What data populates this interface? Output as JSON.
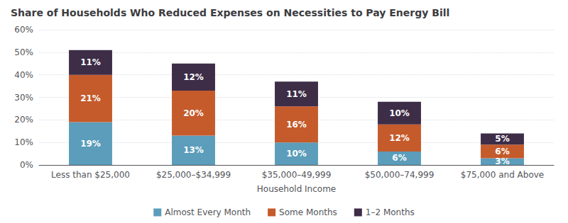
{
  "chart_data": {
    "type": "bar",
    "title": "Share of Households Who Reduced Expenses on Necessities to Pay Energy Bill",
    "categories": [
      "Less than $25,000",
      "$25,000–$34,999",
      "$35,000–49,999",
      "$50,000–74,999",
      "$75,000 and Above"
    ],
    "xlabel": "Household Income",
    "stacked": true,
    "data_labels": true,
    "grid": true,
    "legend": "bottom",
    "ylim": [
      0,
      60
    ],
    "yticks": [
      {
        "value": 0,
        "label": "0%"
      },
      {
        "value": 10,
        "label": "10%"
      },
      {
        "value": 20,
        "label": "20%"
      },
      {
        "value": 30,
        "label": "30%"
      },
      {
        "value": 40,
        "label": "40%"
      },
      {
        "value": 50,
        "label": "50%"
      },
      {
        "value": 60,
        "label": "60%"
      }
    ],
    "series": [
      {
        "name": "Almost Every Month",
        "color": "#5b9dba",
        "values": [
          19,
          13,
          10,
          6,
          3
        ],
        "value_labels": [
          "19%",
          "13%",
          "10%",
          "6%",
          "3%"
        ]
      },
      {
        "name": "Some Months",
        "color": "#c55a2b",
        "values": [
          21,
          20,
          16,
          12,
          6
        ],
        "value_labels": [
          "21%",
          "20%",
          "16%",
          "12%",
          "6%"
        ]
      },
      {
        "name": "1–2 Months",
        "color": "#3d2d47",
        "values": [
          11,
          12,
          11,
          10,
          5
        ],
        "value_labels": [
          "11%",
          "12%",
          "11%",
          "10%",
          "5%"
        ]
      }
    ]
  }
}
